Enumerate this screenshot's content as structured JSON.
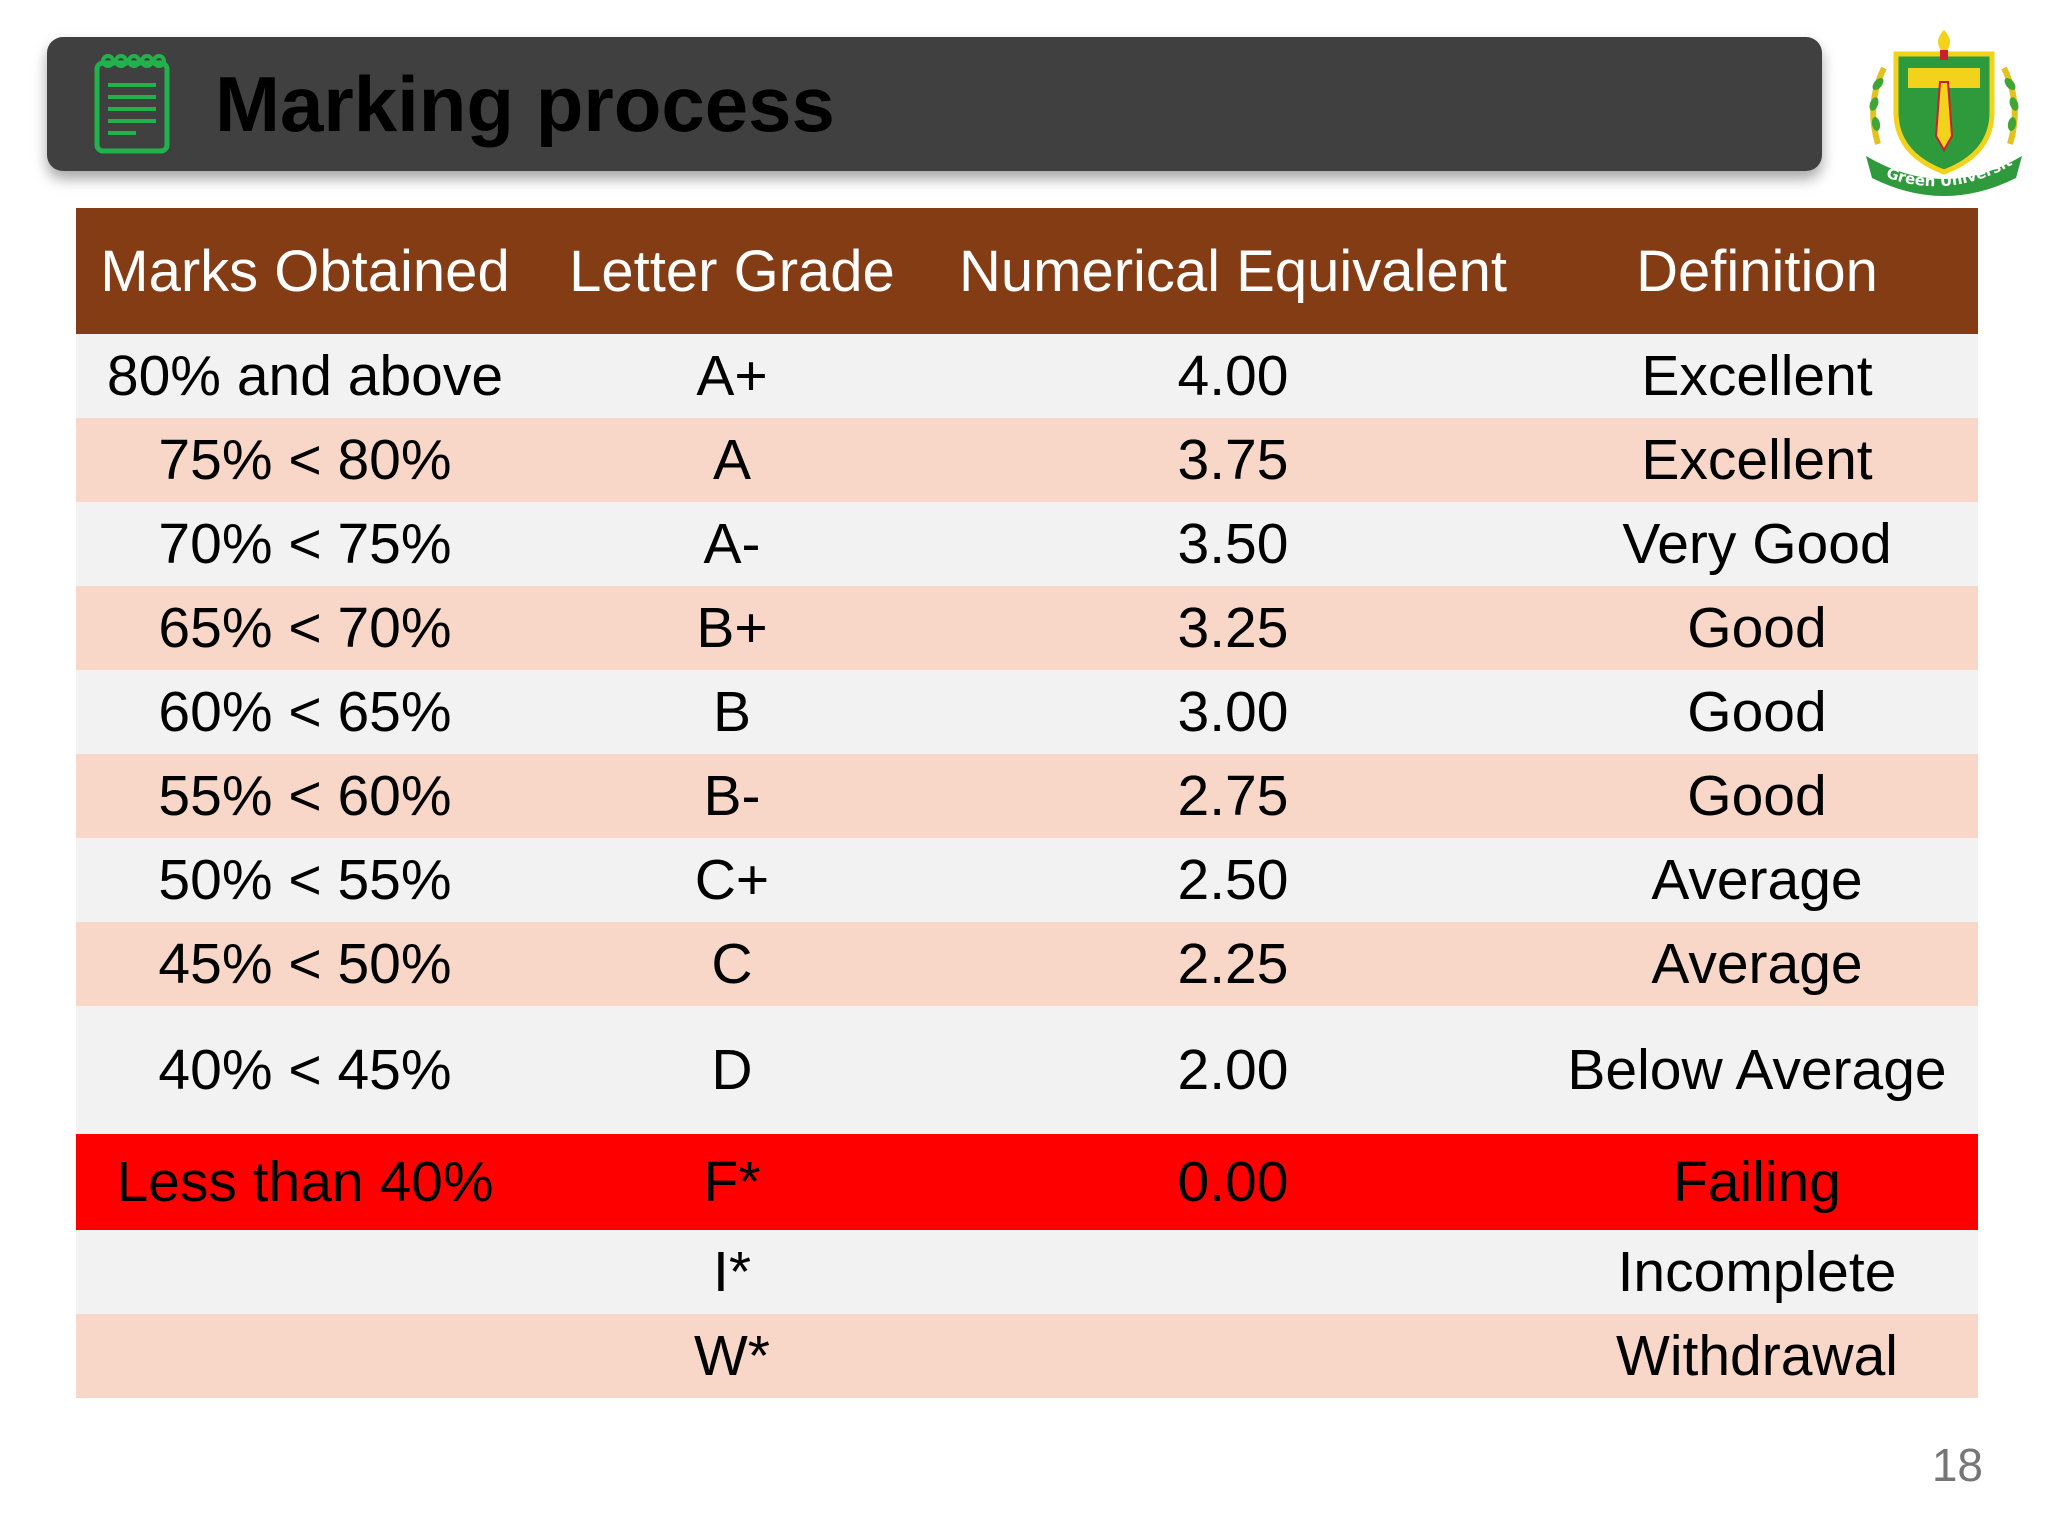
{
  "header": {
    "title": "Marking process",
    "icon": "notepad-icon"
  },
  "logo": {
    "text": "Green University",
    "colors": {
      "green": "#2E9A3C",
      "yellow": "#F2D21B",
      "red": "#C8202F"
    }
  },
  "table": {
    "columns": [
      "Marks Obtained",
      "Letter Grade",
      "Numerical Equivalent",
      "Definition"
    ],
    "rows": [
      {
        "marks": "80% and above",
        "grade": "A+",
        "points": "4.00",
        "definition": "Excellent"
      },
      {
        "marks": "75% < 80%",
        "grade": "A",
        "points": "3.75",
        "definition": "Excellent"
      },
      {
        "marks": "70% < 75%",
        "grade": "A-",
        "points": "3.50",
        "definition": "Very Good"
      },
      {
        "marks": "65% < 70%",
        "grade": "B+",
        "points": "3.25",
        "definition": "Good"
      },
      {
        "marks": "60% < 65%",
        "grade": "B",
        "points": "3.00",
        "definition": "Good"
      },
      {
        "marks": "55% < 60%",
        "grade": "B-",
        "points": "2.75",
        "definition": "Good"
      },
      {
        "marks": "50% < 55%",
        "grade": "C+",
        "points": "2.50",
        "definition": "Average"
      },
      {
        "marks": "45% < 50%",
        "grade": "C",
        "points": "2.25",
        "definition": "Average"
      },
      {
        "marks": "40% < 45%",
        "grade": "D",
        "points": "2.00",
        "definition": "Below Average"
      },
      {
        "marks": "Less than 40%",
        "grade": "F*",
        "points": "0.00",
        "definition": "Failing"
      },
      {
        "marks": "",
        "grade": "I*",
        "points": "",
        "definition": "Incomplete"
      },
      {
        "marks": "",
        "grade": "W*",
        "points": "",
        "definition": "Withdrawal"
      }
    ]
  },
  "colors": {
    "header_bg": "#843C15",
    "row_even": "#F2F2F2",
    "row_odd": "#F8D7C8",
    "row_fail": "#FF0000",
    "title_bar": "#404040"
  },
  "page_number": "18"
}
